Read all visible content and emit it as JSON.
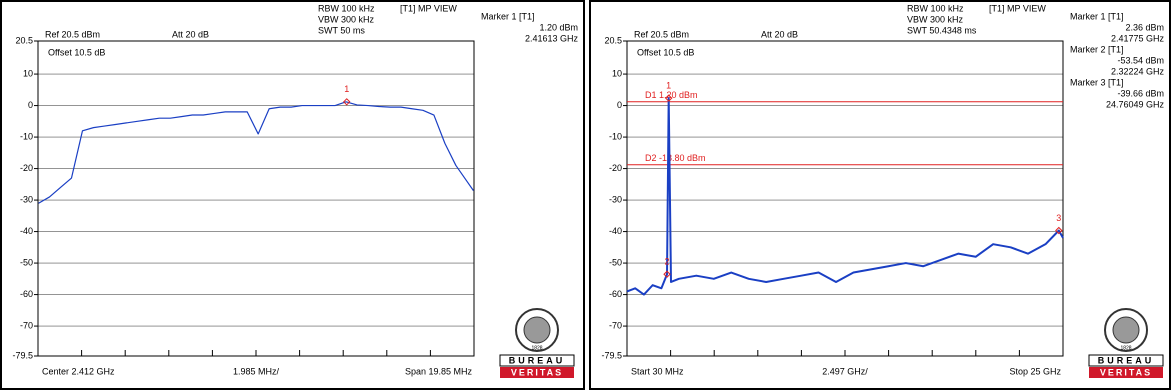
{
  "chart_data": [
    {
      "type": "line",
      "ref": "Ref 20.5 dBm",
      "att": "Att 20 dB",
      "rbw": "RBW 100 kHz",
      "vbw": "VBW 300 kHz",
      "swt": "SWT 50 ms",
      "view": "[T1] MP VIEW",
      "offset": "Offset 10.5 dB",
      "x_start_label": "Center 2.412 GHz",
      "x_div_label": "1.985 MHz/",
      "x_end_label": "Span 19.85 MHz",
      "xlim": [
        2.402075,
        2.421925
      ],
      "ylim": [
        -79.5,
        20.5
      ],
      "yticks": [
        20.5,
        10,
        0,
        -10,
        -20,
        -30,
        -40,
        -50,
        -60,
        -70,
        -79.5
      ],
      "grid": true,
      "color": "#1a3fc4",
      "x": [
        2.4021,
        2.4026,
        2.4031,
        2.4036,
        2.4041,
        2.4046,
        2.4051,
        2.4056,
        2.4061,
        2.4066,
        2.4071,
        2.4076,
        2.4081,
        2.4086,
        2.4091,
        2.4096,
        2.4101,
        2.4106,
        2.4111,
        2.4116,
        2.4121,
        2.4126,
        2.4131,
        2.4136,
        2.4141,
        2.4146,
        2.4151,
        2.4156,
        2.4161,
        2.4166,
        2.4171,
        2.4176,
        2.4181,
        2.4186,
        2.4191,
        2.4196,
        2.4201,
        2.4206,
        2.4211,
        2.4216,
        2.4219
      ],
      "values": [
        -31,
        -29,
        -26,
        -23,
        -8,
        -7,
        -6.5,
        -6,
        -5.5,
        -5,
        -4.5,
        -4,
        -4,
        -3.5,
        -3,
        -3,
        -2.5,
        -2,
        -2,
        -2,
        -9,
        -1,
        -0.5,
        -0.5,
        0,
        0,
        0,
        0,
        1.2,
        0.2,
        0,
        -0.3,
        -0.5,
        -0.5,
        -1,
        -1.5,
        -3,
        -12,
        -19,
        -24,
        -27
      ],
      "markers": [
        {
          "name": "Marker 1 [T1]",
          "label": "1",
          "x": 2.41613,
          "value": 1.2,
          "value_label": "1.20 dBm",
          "x_label": "2.41613 GHz"
        }
      ],
      "logo_top": "BUREAU",
      "logo_bottom": "VERITAS",
      "logo_year": "1828"
    },
    {
      "type": "line",
      "ref": "Ref 20.5 dBm",
      "att": "Att 20 dB",
      "rbw": "RBW 100 kHz",
      "vbw": "VBW 300 kHz",
      "swt": "SWT 50.4348 ms",
      "view": "[T1] MP VIEW",
      "offset": "Offset 10.5 dB",
      "x_start_label": "Start 30 MHz",
      "x_div_label": "2.497 GHz/",
      "x_end_label": "Stop 25 GHz",
      "xlim": [
        0.03,
        25
      ],
      "ylim": [
        -79.5,
        20.5
      ],
      "yticks": [
        20.5,
        10,
        0,
        -10,
        -20,
        -30,
        -40,
        -50,
        -60,
        -70,
        -79.5
      ],
      "grid": true,
      "color": "#1a3fc4",
      "x": [
        0.03,
        0.5,
        1,
        1.5,
        2,
        2.32224,
        2.41775,
        2.55,
        3,
        4,
        5,
        6,
        7,
        8,
        9,
        10,
        11,
        12,
        13,
        14,
        15,
        16,
        17,
        18,
        19,
        20,
        21,
        22,
        23,
        24,
        24.76049,
        25
      ],
      "values": [
        -59,
        -58,
        -60,
        -57,
        -58,
        -53.54,
        2.36,
        -56,
        -55,
        -54,
        -55,
        -53,
        -55,
        -56,
        -55,
        -54,
        -53,
        -56,
        -53,
        -52,
        -51,
        -50,
        -51,
        -49,
        -47,
        -48,
        -44,
        -45,
        -47,
        -44,
        -39.66,
        -42
      ],
      "display_lines": [
        {
          "value": 1.2,
          "label": "D1 1.20 dBm"
        },
        {
          "value": -18.8,
          "label": "D2 -18.80 dBm"
        }
      ],
      "markers": [
        {
          "name": "Marker 1 [T1]",
          "label": "1",
          "x": 2.41775,
          "value": 2.36,
          "value_label": "2.36 dBm",
          "x_label": "2.41775 GHz"
        },
        {
          "name": "Marker 2 [T1]",
          "label": "2",
          "x": 2.32224,
          "value": -53.54,
          "value_label": "-53.54 dBm",
          "x_label": "2.32224 GHz"
        },
        {
          "name": "Marker 3 [T1]",
          "label": "3",
          "x": 24.76049,
          "value": -39.66,
          "value_label": "-39.66 dBm",
          "x_label": "24.76049 GHz"
        }
      ],
      "logo_top": "BUREAU",
      "logo_bottom": "VERITAS",
      "logo_year": "1828"
    }
  ]
}
